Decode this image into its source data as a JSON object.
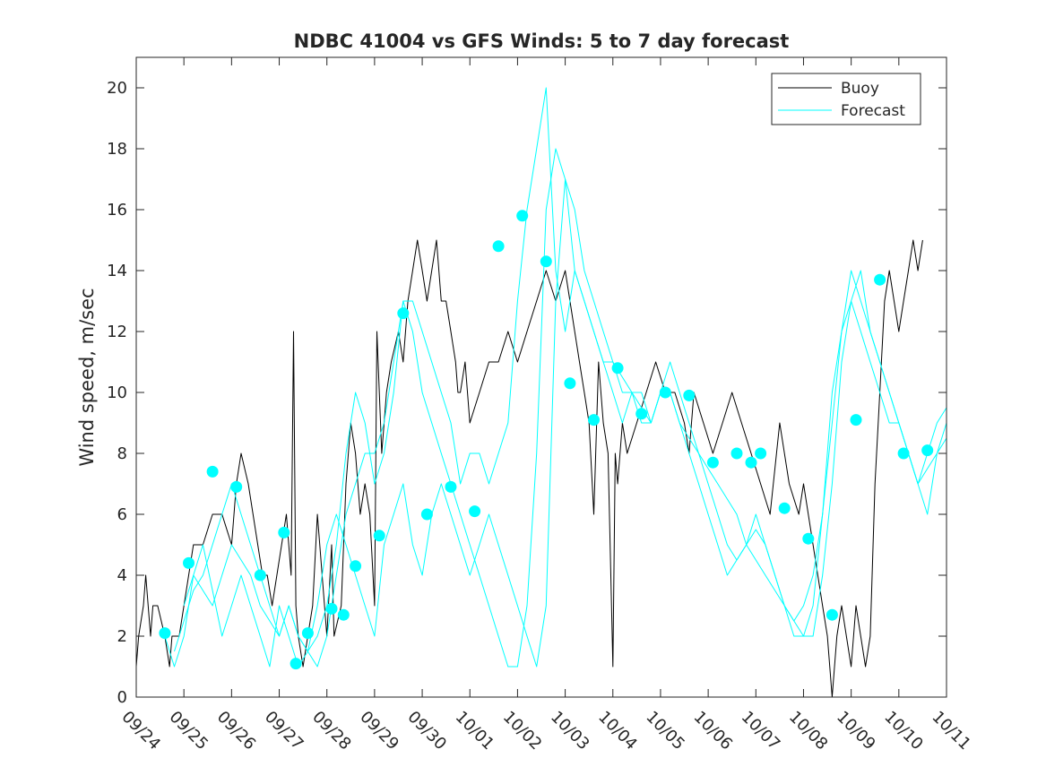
{
  "chart_data": {
    "type": "line",
    "title": "NDBC 41004 vs GFS Winds: 5 to 7 day forecast",
    "xlabel": "",
    "ylabel": "Wind speed, m/sec",
    "xlim": [
      0,
      17
    ],
    "ylim": [
      0,
      21
    ],
    "x_tick_labels": [
      "09/24",
      "09/25",
      "09/26",
      "09/27",
      "09/28",
      "09/29",
      "09/30",
      "10/01",
      "10/02",
      "10/03",
      "10/04",
      "10/05",
      "10/06",
      "10/07",
      "10/08",
      "10/09",
      "10/10",
      "10/11"
    ],
    "y_ticks": [
      0,
      2,
      4,
      6,
      8,
      10,
      12,
      14,
      16,
      18,
      20
    ],
    "legend": {
      "placement": "top-right",
      "entries": [
        "Buoy",
        "Forecast"
      ]
    },
    "colors": {
      "buoy": "#000000",
      "forecast": "#00ffff",
      "axes": "#262626"
    },
    "series": [
      {
        "name": "Buoy",
        "x": [
          0,
          0.05,
          0.15,
          0.2,
          0.25,
          0.3,
          0.35,
          0.45,
          0.6,
          0.7,
          0.75,
          0.8,
          0.9,
          1.0,
          1.1,
          1.2,
          1.4,
          1.6,
          1.8,
          2.0,
          2.1,
          2.2,
          2.35,
          2.45,
          2.55,
          2.65,
          2.75,
          2.85,
          2.95,
          3.05,
          3.15,
          3.25,
          3.3,
          3.35,
          3.4,
          3.5,
          3.6,
          3.7,
          3.8,
          3.9,
          4.0,
          4.1,
          4.15,
          4.3,
          4.4,
          4.5,
          4.6,
          4.7,
          4.8,
          4.9,
          5.0,
          5.05,
          5.15,
          5.25,
          5.35,
          5.5,
          5.6,
          5.7,
          5.8,
          5.9,
          6.0,
          6.1,
          6.2,
          6.3,
          6.4,
          6.5,
          6.6,
          6.7,
          6.75,
          6.8,
          6.9,
          7.0,
          7.2,
          7.4,
          7.6,
          7.8,
          8.0,
          8.2,
          8.4,
          8.6,
          8.8,
          9.0,
          9.1,
          9.2,
          9.3,
          9.4,
          9.5,
          9.6,
          9.7,
          9.8,
          9.9,
          10.0,
          10.05,
          10.1,
          10.2,
          10.3,
          10.5,
          10.7,
          10.9,
          11.1,
          11.3,
          11.5,
          11.6,
          11.7,
          11.9,
          12.1,
          12.3,
          12.5,
          12.7,
          12.9,
          13.1,
          13.3,
          13.5,
          13.7,
          13.9,
          14.0,
          14.1,
          14.2,
          14.3,
          14.4,
          14.5,
          14.6,
          14.7,
          14.8,
          14.9,
          15.0,
          15.1,
          15.2,
          15.3,
          15.4,
          15.5,
          15.6,
          15.7,
          15.8,
          15.9,
          16.0,
          16.1,
          16.2,
          16.3,
          16.4,
          16.5
        ],
        "values": [
          1,
          2,
          3,
          4,
          3,
          2,
          3,
          3,
          2,
          1,
          2,
          2,
          2,
          3,
          4,
          5,
          5,
          6,
          6,
          5,
          7,
          8,
          7,
          6,
          5,
          4,
          4,
          3,
          4,
          5,
          6,
          4,
          12,
          3,
          2,
          1,
          2,
          3,
          6,
          4,
          2,
          5,
          2,
          3,
          7,
          9,
          8,
          6,
          7,
          6,
          3,
          12,
          8,
          10,
          11,
          12,
          11,
          13,
          14,
          15,
          14,
          13,
          14,
          15,
          13,
          13,
          12,
          11,
          10,
          10,
          11,
          9,
          10,
          11,
          11,
          12,
          11,
          12,
          13,
          14,
          13,
          14,
          13,
          12,
          11,
          10,
          9,
          6,
          11,
          9,
          8,
          1,
          8,
          7,
          9,
          8,
          9,
          10,
          11,
          10,
          10,
          9,
          8,
          10,
          9,
          8,
          9,
          10,
          9,
          8,
          7,
          6,
          9,
          7,
          6,
          7,
          6,
          5,
          4,
          3,
          2,
          0,
          2,
          3,
          2,
          1,
          3,
          2,
          1,
          2,
          7,
          10,
          13,
          14,
          13,
          12,
          13,
          14,
          15,
          14,
          15
        ]
      },
      {
        "name": "Forecast",
        "x": [
          0.6,
          0.7,
          0.8,
          0.9,
          1.0,
          1.1,
          1.2,
          1.4,
          1.6,
          1.8,
          2.0,
          2.2,
          2.4,
          2.6,
          2.8,
          3.0,
          3.2,
          3.4,
          3.6,
          3.8,
          4.0,
          4.2,
          4.4,
          4.6,
          4.8,
          5.0,
          5.2,
          5.4,
          5.6,
          5.8,
          6.0,
          6.2,
          6.4,
          6.6,
          6.8,
          7.0,
          7.2,
          7.4,
          7.6,
          7.8,
          8.0,
          8.2,
          8.4,
          8.6,
          8.8,
          9.0,
          9.2,
          9.4,
          9.6,
          9.8,
          10.0,
          10.2,
          10.4,
          10.6,
          10.8,
          11.0,
          11.2,
          11.4,
          11.6,
          11.8,
          12.0,
          12.2,
          12.4,
          12.6,
          12.8,
          13.0,
          13.2,
          13.4,
          13.6,
          13.8,
          14.0,
          14.2,
          14.4,
          14.6,
          14.8,
          15.0,
          15.2,
          15.4,
          15.6,
          15.8,
          16.0,
          16.2,
          16.4,
          16.6,
          16.8,
          17.0
        ],
        "values": [
          2,
          1.5,
          1,
          1.5,
          2,
          3,
          4,
          5,
          3.5,
          2,
          3,
          4,
          3,
          2,
          1,
          3,
          2,
          1,
          1.5,
          2,
          3,
          5,
          8,
          10,
          9,
          7,
          8,
          10,
          13,
          13,
          12,
          11,
          10,
          9,
          7,
          8,
          8,
          7,
          8,
          9,
          13,
          16,
          18,
          20,
          14,
          12,
          14,
          13,
          12,
          11,
          11,
          10,
          10,
          9,
          9,
          10,
          10,
          9,
          8,
          7,
          6,
          5,
          4,
          4.5,
          5,
          6,
          5,
          4,
          3,
          2,
          2,
          3,
          6,
          10,
          12,
          13,
          12,
          11,
          10,
          9,
          9,
          8,
          7,
          8,
          9,
          9.5
        ]
      },
      {
        "name": "Forecast",
        "x": [
          0.8,
          1.0,
          1.2,
          1.4,
          1.6,
          1.8,
          2.0,
          2.2,
          2.4,
          2.6,
          2.8,
          3.0,
          3.2,
          3.4,
          3.6,
          3.8,
          4.0,
          4.2,
          4.4,
          4.6,
          4.8,
          5.0,
          5.2,
          5.4,
          5.6,
          5.8,
          6.0,
          6.2,
          6.4,
          6.6,
          6.8,
          7.0,
          7.2,
          7.4,
          7.6,
          7.8,
          8.0,
          8.2,
          8.4,
          8.6,
          8.8,
          9.0,
          9.2,
          9.4,
          9.6,
          9.8,
          10.0,
          10.2,
          10.4,
          10.6,
          10.8,
          11.0,
          11.2,
          11.4,
          11.6,
          11.8,
          12.0,
          12.2,
          12.4,
          12.6,
          12.8,
          13.0,
          13.2,
          13.4,
          13.6,
          13.8,
          14.0,
          14.2,
          14.4,
          14.6,
          14.8,
          15.0,
          15.2,
          15.4,
          15.6,
          15.8,
          16.0,
          16.2,
          16.4,
          16.6,
          16.8,
          17.0
        ],
        "values": [
          1.5,
          2.5,
          3.5,
          4,
          5,
          6,
          7,
          6,
          5,
          4,
          3,
          2,
          3,
          2,
          1.5,
          1,
          2,
          4,
          6,
          7,
          8,
          8,
          9,
          11,
          13,
          12,
          10,
          9,
          8,
          7,
          6,
          5,
          4,
          3,
          2,
          1,
          1,
          3,
          8,
          16,
          18,
          17,
          14,
          13,
          12,
          11,
          10,
          9,
          10,
          10,
          9,
          10,
          11,
          10,
          9,
          8,
          7,
          6,
          5,
          4.5,
          5,
          5.5,
          5,
          4,
          3,
          2.5,
          2,
          2,
          4,
          7,
          11,
          13,
          14,
          12,
          11,
          10,
          9,
          8,
          7,
          6,
          8,
          9
        ]
      },
      {
        "name": "Forecast",
        "x": [
          1.0,
          1.2,
          1.4,
          1.6,
          1.8,
          2.0,
          2.2,
          2.4,
          2.6,
          2.8,
          3.0,
          3.2,
          3.4,
          3.6,
          3.8,
          4.0,
          4.2,
          4.4,
          4.6,
          4.8,
          5.0,
          5.2,
          5.4,
          5.6,
          5.8,
          6.0,
          6.2,
          6.4,
          6.6,
          6.8,
          7.0,
          7.2,
          7.4,
          7.6,
          7.8,
          8.0,
          8.2,
          8.4,
          8.6,
          8.8,
          9.0,
          9.2,
          9.4,
          9.6,
          9.8,
          10.0,
          10.2,
          10.4,
          10.6,
          10.8,
          11.0,
          11.2,
          11.4,
          11.6,
          11.8,
          12.0,
          12.2,
          12.4,
          12.6,
          12.8,
          13.0,
          13.2,
          13.4,
          13.6,
          13.8,
          14.0,
          14.2,
          14.4,
          14.6,
          14.8,
          15.0,
          15.2,
          15.4,
          15.6,
          15.8,
          16.0,
          16.2,
          16.4,
          16.6,
          16.8,
          17.0
        ],
        "values": [
          3,
          4,
          3.5,
          3,
          4,
          5,
          4.5,
          4,
          3,
          2.5,
          2,
          3,
          2,
          1.5,
          3,
          5,
          6,
          5,
          4,
          3,
          2,
          5,
          6,
          7,
          5,
          4,
          6,
          7,
          6,
          5,
          4,
          5,
          6,
          5,
          4,
          3,
          2,
          1,
          3,
          13,
          17,
          16,
          14,
          13,
          12,
          11,
          10.5,
          10,
          9.5,
          9,
          10,
          10,
          9,
          8.5,
          8,
          7.5,
          7,
          6.5,
          6,
          5,
          4.5,
          4,
          3.5,
          3,
          2.5,
          3,
          4,
          6,
          9,
          12,
          14,
          13,
          12,
          11,
          10,
          9,
          8,
          7,
          7.5,
          8,
          8.5
        ]
      }
    ],
    "forecast_markers": {
      "x": [
        0.6,
        1.1,
        1.6,
        2.1,
        2.6,
        3.1,
        3.35,
        3.6,
        4.1,
        4.35,
        4.6,
        5.1,
        5.6,
        6.1,
        6.6,
        7.1,
        7.6,
        8.1,
        8.6,
        9.1,
        9.6,
        10.1,
        10.6,
        11.1,
        11.6,
        12.1,
        12.6,
        12.9,
        13.1,
        13.6,
        14.1,
        14.6,
        15.1,
        15.6,
        16.1,
        16.6
      ],
      "values": [
        2.1,
        4.4,
        7.4,
        6.9,
        4.0,
        5.4,
        1.1,
        2.1,
        2.9,
        2.7,
        4.3,
        5.3,
        12.6,
        6.0,
        6.9,
        6.1,
        14.8,
        15.8,
        14.3,
        10.3,
        9.1,
        10.8,
        9.3,
        10.0,
        9.9,
        7.7,
        8.0,
        7.7,
        8.0,
        6.2,
        5.2,
        2.7,
        9.1,
        13.7,
        8.0,
        8.1
      ]
    }
  }
}
